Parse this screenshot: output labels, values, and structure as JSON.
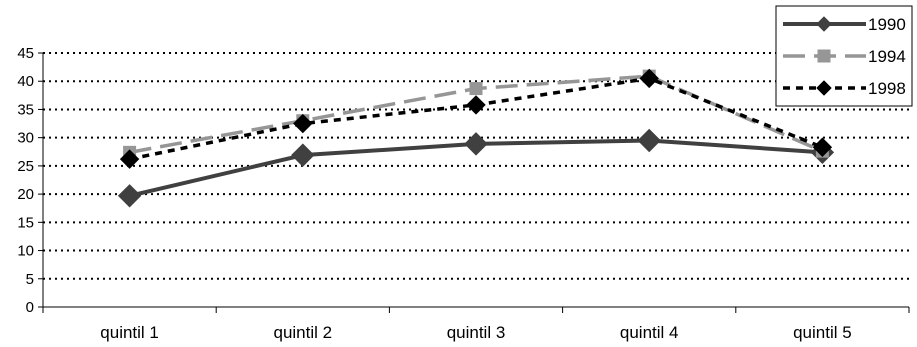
{
  "chart_data": {
    "type": "line",
    "categories": [
      "quintil 1",
      "quintil 2",
      "quintil 3",
      "quintil 4",
      "quintil 5"
    ],
    "ylim": [
      0,
      45
    ],
    "y_ticks": [
      "0",
      "5",
      "10",
      "15",
      "20",
      "25",
      "30",
      "35",
      "40",
      "45"
    ],
    "grid": "horizontal dotted",
    "legend_position": "top-right",
    "series": [
      {
        "name": "1990",
        "values": [
          19.7,
          26.9,
          28.9,
          29.5,
          27.4
        ],
        "color": "#404040",
        "line_style": "solid",
        "marker": "diamond"
      },
      {
        "name": "1994",
        "values": [
          27.4,
          33.0,
          38.7,
          40.9,
          27.6
        ],
        "color": "#969696",
        "line_style": "long-dash",
        "marker": "square"
      },
      {
        "name": "1998",
        "values": [
          26.2,
          32.5,
          35.8,
          40.5,
          28.3
        ],
        "color": "#000000",
        "line_style": "short-dash",
        "marker": "diamond"
      }
    ]
  }
}
